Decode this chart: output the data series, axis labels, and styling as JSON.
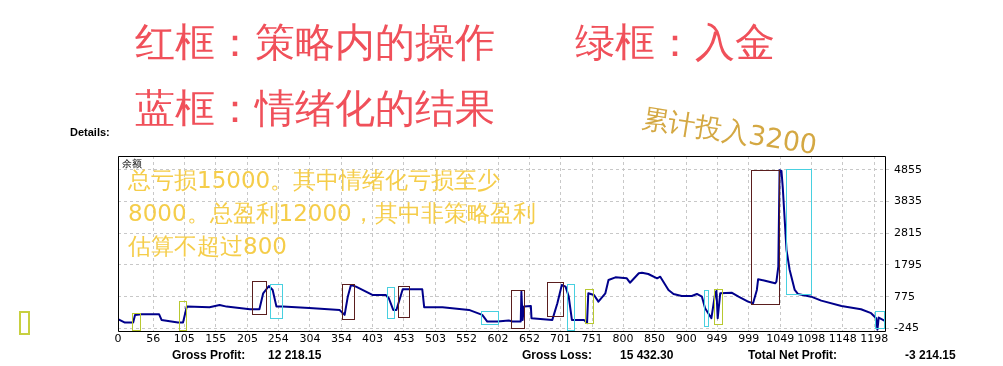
{
  "chart_data": {
    "type": "line",
    "title": "红框：策略内的操作　　绿框：入金",
    "subtitle": "蓝框：情绪化的结果",
    "annotations": [
      "累计投入3200",
      "总亏损15000。其中情绪化亏损至少8000。总盈利12000，其中非策略盈利估算不超过800",
      "Details:",
      "Gross Profit:",
      "12 218.15",
      "Gross Loss:",
      "15 432.30",
      "Total Net Profit:",
      "-3 214.15"
    ],
    "series": [
      {
        "name": "余额",
        "color": "#00008b",
        "x": [
          0,
          11,
          24,
          27,
          37,
          65,
          69,
          95,
          103,
          109,
          145,
          161,
          172,
          209,
          224,
          230,
          239,
          245,
          251,
          261,
          303,
          351,
          359,
          364,
          369,
          377,
          403,
          424,
          429,
          436,
          441,
          451,
          482,
          485,
          514,
          556,
          577,
          585,
          601,
          619,
          625,
          638,
          639,
          641,
          643,
          654,
          655,
          688,
          696,
          703,
          709,
          714,
          719,
          738,
          743,
          745,
          754,
          761,
          772,
          777,
          788,
          806,
          811,
          825,
          830,
          840,
          854,
          859,
          872,
          880,
          893,
          909,
          917,
          925,
          930,
          940,
          946,
          948,
          950,
          954,
          972,
          983,
          998,
          1006,
          1012,
          1014,
          1025,
          1041,
          1043,
          1046,
          1048,
          1051,
          1053,
          1059,
          1064,
          1072,
          1077,
          1098,
          1114,
          1146,
          1177,
          1193,
          1201,
          1203,
          1205,
          1214
        ],
        "values": [
          50,
          -59,
          -59,
          188,
          210,
          210,
          27,
          -59,
          -59,
          455,
          435,
          509,
          455,
          371,
          371,
          884,
          1118,
          990,
          455,
          455,
          413,
          348,
          188,
          775,
          1150,
          1096,
          830,
          830,
          724,
          348,
          348,
          1013,
          1013,
          435,
          435,
          348,
          188,
          -27,
          -27,
          5,
          -27,
          -27,
          936,
          27,
          455,
          477,
          82,
          27,
          563,
          1150,
          1096,
          775,
          27,
          27,
          -78,
          884,
          830,
          615,
          884,
          1311,
          1397,
          1365,
          1224,
          1526,
          1545,
          1503,
          1365,
          1417,
          990,
          862,
          797,
          797,
          862,
          775,
          403,
          82,
          884,
          958,
          82,
          884,
          903,
          775,
          615,
          563,
          990,
          1333,
          1288,
          1205,
          1256,
          1738,
          4840,
          4817,
          4304,
          2273,
          1632,
          990,
          862,
          775,
          647,
          477,
          371,
          243,
          82,
          -290,
          101,
          5
        ]
      }
    ],
    "xlim": [
      0,
      1215
    ],
    "xticks": [
      0,
      56,
      105,
      155,
      205,
      254,
      304,
      354,
      403,
      453,
      503,
      552,
      602,
      652,
      701,
      751,
      800,
      850,
      900,
      949,
      999,
      1049,
      1098,
      1148,
      1198
    ],
    "ylim": [
      -330,
      5300
    ],
    "yticks": [
      -245,
      775,
      1795,
      2815,
      3835,
      4855
    ],
    "grid": true,
    "legend": false,
    "marker": "none",
    "line_style": "solid"
  }
}
